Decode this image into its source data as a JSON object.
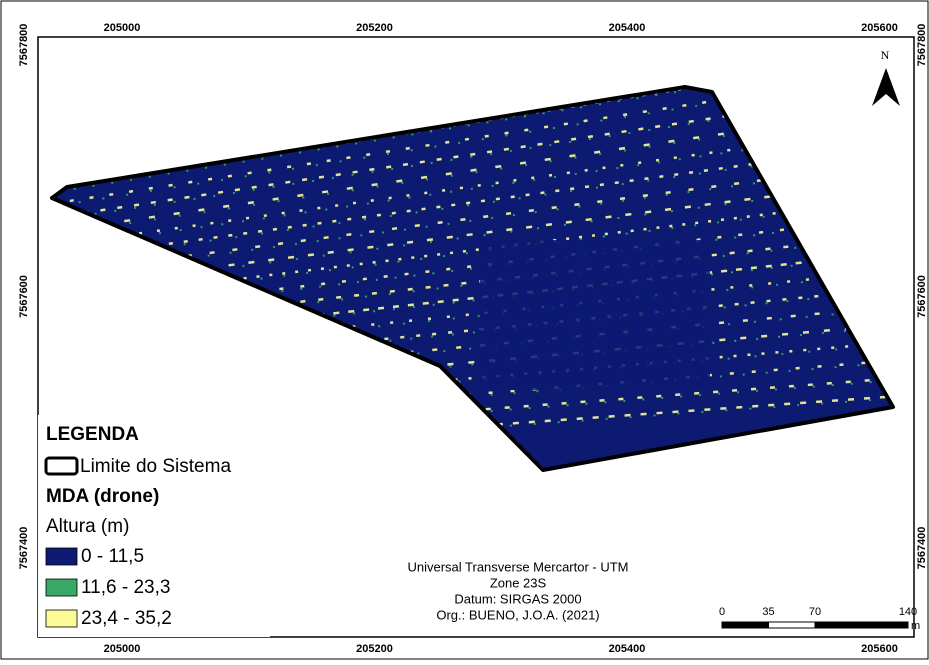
{
  "grid": {
    "x_ticks": [
      205000,
      205200,
      205400,
      205600
    ],
    "y_ticks": [
      7567800,
      7567600,
      7567400
    ]
  },
  "north_arrow": {
    "label": "N"
  },
  "legend": {
    "title": "LEGENDA",
    "boundary": "Limite do Sistema",
    "layer": "MDA (drone)",
    "field": "Altura (m)",
    "classes": [
      {
        "label": "0 - 11,5",
        "color": "#0c1a72"
      },
      {
        "label": "11,6 - 23,3",
        "color": "#3aa866"
      },
      {
        "label": "23,4 - 35,2",
        "color": "#fbfb95"
      }
    ]
  },
  "credits": [
    "Universal Transverse Mercartor - UTM",
    "Zone 23S",
    "Datum: SIRGAS 2000",
    "Org.: BUENO, J.O.A. (2021)"
  ],
  "scale_bar": {
    "ticks": [
      0,
      35,
      70,
      140
    ],
    "unit": "m"
  }
}
